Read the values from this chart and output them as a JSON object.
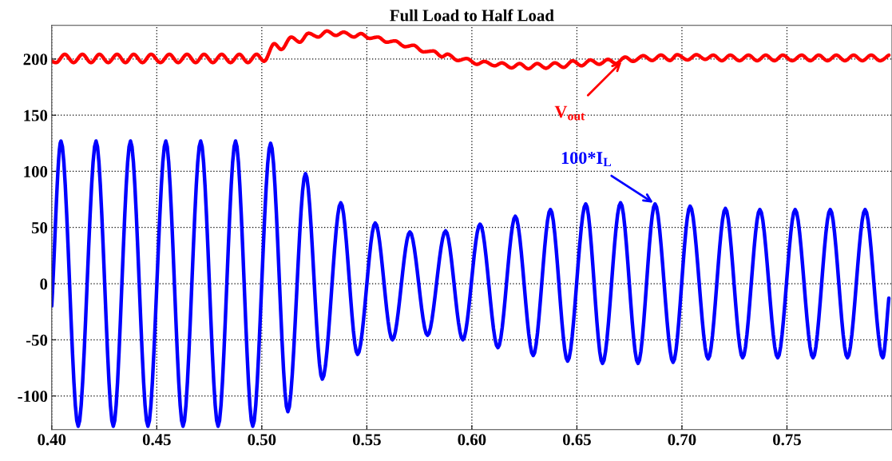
{
  "chart_data": {
    "type": "line",
    "title": "Full Load to Half Load",
    "xlim": [
      0.4,
      0.8
    ],
    "ylim": [
      -130,
      230
    ],
    "xticks": [
      {
        "value": 0.4,
        "label": "0.40"
      },
      {
        "value": 0.45,
        "label": "0.45"
      },
      {
        "value": 0.5,
        "label": "0.50"
      },
      {
        "value": 0.55,
        "label": "0.55"
      },
      {
        "value": 0.6,
        "label": "0.60"
      },
      {
        "value": 0.65,
        "label": "0.65"
      },
      {
        "value": 0.7,
        "label": "0.70"
      },
      {
        "value": 0.75,
        "label": "0.75"
      }
    ],
    "yticks": [
      -100,
      -50,
      0,
      50,
      100,
      150,
      200
    ],
    "grid": true,
    "legend": false,
    "line_style": "solid",
    "marker": "none",
    "series": [
      {
        "color": "#ff0000",
        "x": [
          0.4,
          0.4021,
          0.4062,
          0.4104,
          0.4146,
          0.4187,
          0.4227,
          0.4269,
          0.4311,
          0.4351,
          0.439,
          0.4432,
          0.4473,
          0.4517,
          0.456,
          0.4602,
          0.4644,
          0.4685,
          0.4725,
          0.4767,
          0.4809,
          0.4851,
          0.4893,
          0.4934,
          0.4975,
          0.5011,
          0.5059,
          0.5093,
          0.514,
          0.5181,
          0.5222,
          0.5269,
          0.531,
          0.5352,
          0.539,
          0.5438,
          0.5472,
          0.5512,
          0.5553,
          0.5594,
          0.5634,
          0.5682,
          0.5722,
          0.5769,
          0.5817,
          0.5858,
          0.5884,
          0.5933,
          0.5975,
          0.6024,
          0.6059,
          0.6108,
          0.6143,
          0.6189,
          0.6227,
          0.6269,
          0.6311,
          0.6353,
          0.6395,
          0.6437,
          0.648,
          0.6522,
          0.6564,
          0.6606,
          0.6648,
          0.6686,
          0.673,
          0.6767,
          0.6816,
          0.6858,
          0.69,
          0.6943,
          0.6977,
          0.7027,
          0.7069,
          0.7111,
          0.7149,
          0.719,
          0.723,
          0.7274,
          0.7317,
          0.7358,
          0.7399,
          0.744,
          0.748,
          0.7525,
          0.757,
          0.7611,
          0.7651,
          0.7693,
          0.7735,
          0.7776,
          0.7817,
          0.7859,
          0.7901,
          0.7943,
          0.7985
        ],
        "values": [
          198,
          196.8,
          204.3,
          196.8,
          204.3,
          196.8,
          204.3,
          196.8,
          204.3,
          196.8,
          204.3,
          196.8,
          204.3,
          196.8,
          204.3,
          196.8,
          204.3,
          196.8,
          204.3,
          196.8,
          204.3,
          196.8,
          204.3,
          196.8,
          204.3,
          198,
          213.7,
          208.5,
          219.6,
          215,
          223,
          219.6,
          225,
          221,
          224,
          219.6,
          222.7,
          218.4,
          219.6,
          215,
          216.2,
          211,
          212.3,
          206.4,
          207.2,
          202,
          204.4,
          198.7,
          200.5,
          195.3,
          197.9,
          194,
          196.6,
          192.1,
          196,
          191.3,
          196,
          191.8,
          196.6,
          192.6,
          198.4,
          194,
          199.2,
          195.3,
          199.7,
          196,
          201.8,
          197.9,
          203,
          198.7,
          203.6,
          198.7,
          203.9,
          199.2,
          203.9,
          199.7,
          203.5,
          198.5,
          203.5,
          198.5,
          203.5,
          198.5,
          203.5,
          198.5,
          203.5,
          198.5,
          203.5,
          198.5,
          203.5,
          198.5,
          203.5,
          198.5,
          203.5,
          198.5,
          203.5,
          198.5,
          203.5
        ]
      },
      {
        "color": "#0000ff",
        "x": [
          0.4,
          0.4044,
          0.4126,
          0.4211,
          0.4293,
          0.4375,
          0.4458,
          0.4543,
          0.4625,
          0.4709,
          0.4792,
          0.4875,
          0.4957,
          0.5042,
          0.5124,
          0.5208,
          0.5288,
          0.5376,
          0.5456,
          0.554,
          0.5622,
          0.5705,
          0.5789,
          0.5875,
          0.5957,
          0.6039,
          0.6124,
          0.6207,
          0.6292,
          0.6374,
          0.6456,
          0.6542,
          0.6622,
          0.6708,
          0.6791,
          0.6872,
          0.6958,
          0.7039,
          0.7125,
          0.7207,
          0.7289,
          0.7371,
          0.7456,
          0.7539,
          0.7624,
          0.7706,
          0.7788,
          0.7872,
          0.7956,
          0.7985
        ],
        "values": [
          -20,
          127,
          -127,
          127,
          -127,
          127,
          -127,
          127,
          -127,
          127,
          -127,
          127,
          -127,
          125,
          -114,
          98,
          -85,
          72,
          -63,
          54,
          -50,
          46,
          -46,
          47,
          -50,
          53,
          -57,
          60,
          -64,
          66,
          -69,
          71,
          -71,
          72,
          -71,
          71,
          -70,
          69,
          -67,
          67,
          -66,
          66,
          -66,
          66,
          -66,
          66,
          -66,
          66,
          -66,
          -13
        ]
      }
    ],
    "annotations": [
      {
        "text": "V$_{out}$",
        "x": 0.672,
        "y": 199
      },
      {
        "text": "100*I$_{L}$",
        "x": 0.6872,
        "y": 71
      }
    ]
  }
}
